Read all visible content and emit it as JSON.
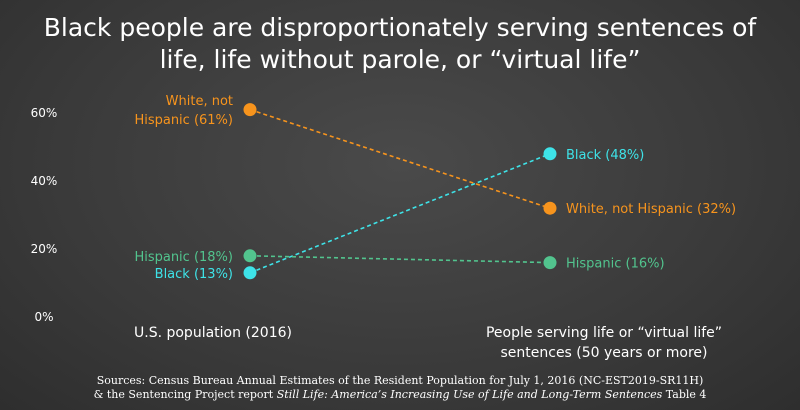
{
  "title_lines": [
    "Black people are disproportionately serving sentences of",
    "life, life without parole, or “virtual life”"
  ],
  "colors": {
    "white": "#f7941d",
    "black": "#3ee3e8",
    "hispanic": "#52c48e"
  },
  "chart_data": {
    "type": "line",
    "categories": [
      "U.S. population (2016)",
      "People serving life or “virtual life” sentences (50 years or more)"
    ],
    "category_label_lines": [
      [
        "U.S. population (2016)"
      ],
      [
        "People serving life or “virtual life”",
        "sentences (50 years or more)"
      ]
    ],
    "ylim": [
      0,
      60
    ],
    "yticks": [
      "0%",
      "20%",
      "40%",
      "60%"
    ],
    "ytick_values": [
      0,
      20,
      40,
      60
    ],
    "series": [
      {
        "key": "white",
        "values": [
          61,
          32
        ],
        "left_label_lines": [
          "White, not",
          "Hispanic (61%)"
        ],
        "right_label": "White, not Hispanic (32%)"
      },
      {
        "key": "black",
        "values": [
          13,
          48
        ],
        "left_label_lines": [
          "Black (13%)"
        ],
        "right_label": "Black (48%)"
      },
      {
        "key": "hispanic",
        "values": [
          18,
          16
        ],
        "left_label_lines": [
          "Hispanic (18%)"
        ],
        "right_label": "Hispanic (16%)"
      }
    ]
  },
  "source": {
    "line1": "Sources: Census Bureau Annual Estimates of the Resident Population for July 1, 2016 (NC-EST2019-SR11H)",
    "line2_prefix": "& the Sentencing Project report ",
    "line2_italic": "Still Life: America’s Increasing Use of Life and Long-Term Sentences",
    "line2_suffix": " Table 4"
  }
}
